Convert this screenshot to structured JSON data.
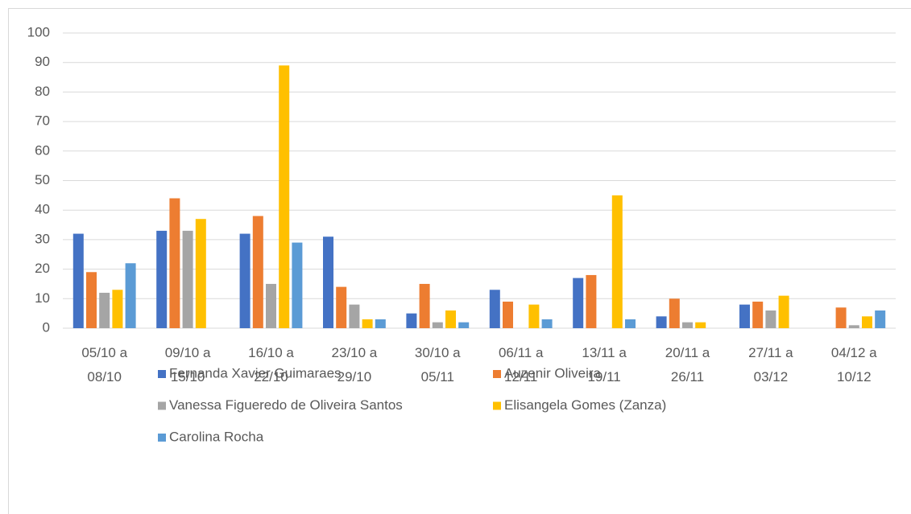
{
  "chart_data": {
    "type": "bar",
    "categories": [
      "05/10 a 08/10",
      "09/10 a 15/10",
      "16/10 a 22/10",
      "23/10 a 29/10",
      "30/10 a 05/11",
      "06/11 a 12/11",
      "13/11 a 19/11",
      "20/11 a 26/11",
      "27/11 a 03/12",
      "04/12 a 10/12"
    ],
    "series": [
      {
        "name": "Fernanda Xavier Guimaraes",
        "color": "#4472c4",
        "values": [
          32,
          33,
          32,
          31,
          5,
          13,
          17,
          4,
          8,
          0
        ]
      },
      {
        "name": "Auzenir Oliveira",
        "color": "#ed7d31",
        "values": [
          19,
          44,
          38,
          14,
          15,
          9,
          18,
          10,
          9,
          7
        ]
      },
      {
        "name": "Vanessa Figueredo de Oliveira Santos",
        "color": "#a5a5a5",
        "values": [
          12,
          33,
          15,
          8,
          2,
          0,
          0,
          2,
          6,
          1
        ]
      },
      {
        "name": "Elisangela Gomes (Zanza)",
        "color": "#ffc000",
        "values": [
          13,
          37,
          89,
          3,
          6,
          8,
          45,
          2,
          11,
          4
        ]
      },
      {
        "name": "Carolina Rocha",
        "color": "#5b9bd5",
        "values": [
          22,
          0,
          29,
          3,
          2,
          3,
          3,
          0,
          0,
          6
        ]
      }
    ],
    "ylim": [
      0,
      100
    ],
    "yticks": [
      0,
      10,
      20,
      30,
      40,
      50,
      60,
      70,
      80,
      90,
      100
    ],
    "grid": true,
    "legend": "bottom"
  }
}
